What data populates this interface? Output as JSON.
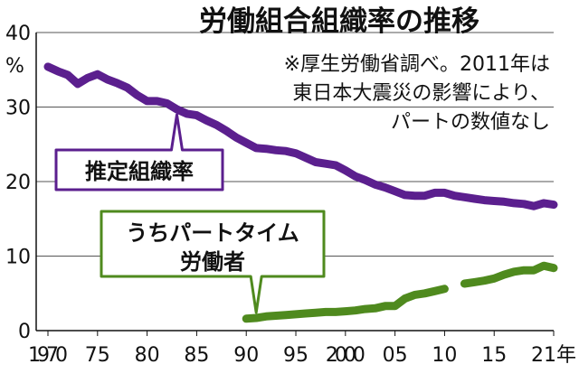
{
  "chart_data": {
    "type": "line",
    "title": "労働組合組織率の推移",
    "notes": [
      "※厚生労働省調べ。2011年は",
      "東日本大震災の影響により、",
      "パートの数値なし"
    ],
    "y_unit_label": "%",
    "ylim": [
      0,
      40
    ],
    "xlim": [
      1970,
      2021
    ],
    "y_ticks": [
      {
        "value": 0,
        "label": "0"
      },
      {
        "value": 10,
        "label": "10"
      },
      {
        "value": 20,
        "label": "20"
      },
      {
        "value": 30,
        "label": "30"
      },
      {
        "value": 40,
        "label": "40"
      }
    ],
    "x_ticks": [
      {
        "value": 1970,
        "label": "1970"
      },
      {
        "value": 1975,
        "label": "75"
      },
      {
        "value": 1980,
        "label": "80"
      },
      {
        "value": 1985,
        "label": "85"
      },
      {
        "value": 1990,
        "label": "90"
      },
      {
        "value": 1995,
        "label": "95"
      },
      {
        "value": 2000,
        "label": "2000"
      },
      {
        "value": 2005,
        "label": "05"
      },
      {
        "value": 2010,
        "label": "10"
      },
      {
        "value": 2015,
        "label": "15"
      },
      {
        "value": 2021,
        "label": "21年"
      }
    ],
    "grid": "horizontal",
    "series": [
      {
        "name": "推定組織率",
        "label_lines": [
          "推定組織率"
        ],
        "color": "#5b1f8e",
        "points": [
          [
            1970,
            35.4
          ],
          [
            1971,
            34.8
          ],
          [
            1972,
            34.3
          ],
          [
            1973,
            33.1
          ],
          [
            1974,
            33.9
          ],
          [
            1975,
            34.4
          ],
          [
            1976,
            33.7
          ],
          [
            1977,
            33.2
          ],
          [
            1978,
            32.6
          ],
          [
            1979,
            31.6
          ],
          [
            1980,
            30.8
          ],
          [
            1981,
            30.8
          ],
          [
            1982,
            30.5
          ],
          [
            1983,
            29.7
          ],
          [
            1984,
            29.1
          ],
          [
            1985,
            28.9
          ],
          [
            1986,
            28.2
          ],
          [
            1987,
            27.6
          ],
          [
            1988,
            26.8
          ],
          [
            1989,
            25.9
          ],
          [
            1990,
            25.2
          ],
          [
            1991,
            24.5
          ],
          [
            1992,
            24.4
          ],
          [
            1993,
            24.2
          ],
          [
            1994,
            24.1
          ],
          [
            1995,
            23.8
          ],
          [
            1996,
            23.2
          ],
          [
            1997,
            22.6
          ],
          [
            1998,
            22.4
          ],
          [
            1999,
            22.2
          ],
          [
            2000,
            21.5
          ],
          [
            2001,
            20.7
          ],
          [
            2002,
            20.2
          ],
          [
            2003,
            19.6
          ],
          [
            2004,
            19.2
          ],
          [
            2005,
            18.7
          ],
          [
            2006,
            18.2
          ],
          [
            2007,
            18.1
          ],
          [
            2008,
            18.1
          ],
          [
            2009,
            18.5
          ],
          [
            2010,
            18.5
          ],
          [
            2011,
            18.1
          ],
          [
            2012,
            17.9
          ],
          [
            2013,
            17.7
          ],
          [
            2014,
            17.5
          ],
          [
            2015,
            17.4
          ],
          [
            2016,
            17.3
          ],
          [
            2017,
            17.1
          ],
          [
            2018,
            17.0
          ],
          [
            2019,
            16.7
          ],
          [
            2020,
            17.1
          ],
          [
            2021,
            16.9
          ]
        ],
        "callout_at": 1983
      },
      {
        "name": "うちパートタイム労働者",
        "label_lines": [
          "うちパートタイム",
          "労働者"
        ],
        "color": "#4f8a1e",
        "points": [
          [
            1990,
            1.6
          ],
          [
            1991,
            1.7
          ],
          [
            1992,
            1.9
          ],
          [
            1993,
            2.0
          ],
          [
            1994,
            2.1
          ],
          [
            1995,
            2.2
          ],
          [
            1996,
            2.3
          ],
          [
            1997,
            2.4
          ],
          [
            1998,
            2.5
          ],
          [
            1999,
            2.5
          ],
          [
            2000,
            2.6
          ],
          [
            2001,
            2.7
          ],
          [
            2002,
            2.9
          ],
          [
            2003,
            3.0
          ],
          [
            2004,
            3.3
          ],
          [
            2005,
            3.3
          ],
          [
            2006,
            4.3
          ],
          [
            2007,
            4.8
          ],
          [
            2008,
            5.0
          ],
          [
            2009,
            5.3
          ],
          [
            2010,
            5.6
          ],
          [
            2011,
            null
          ],
          [
            2012,
            6.3
          ],
          [
            2013,
            6.5
          ],
          [
            2014,
            6.7
          ],
          [
            2015,
            7.0
          ],
          [
            2016,
            7.5
          ],
          [
            2017,
            7.9
          ],
          [
            2018,
            8.1
          ],
          [
            2019,
            8.1
          ],
          [
            2020,
            8.7
          ],
          [
            2021,
            8.4
          ]
        ],
        "callout_at": 1991
      }
    ]
  }
}
